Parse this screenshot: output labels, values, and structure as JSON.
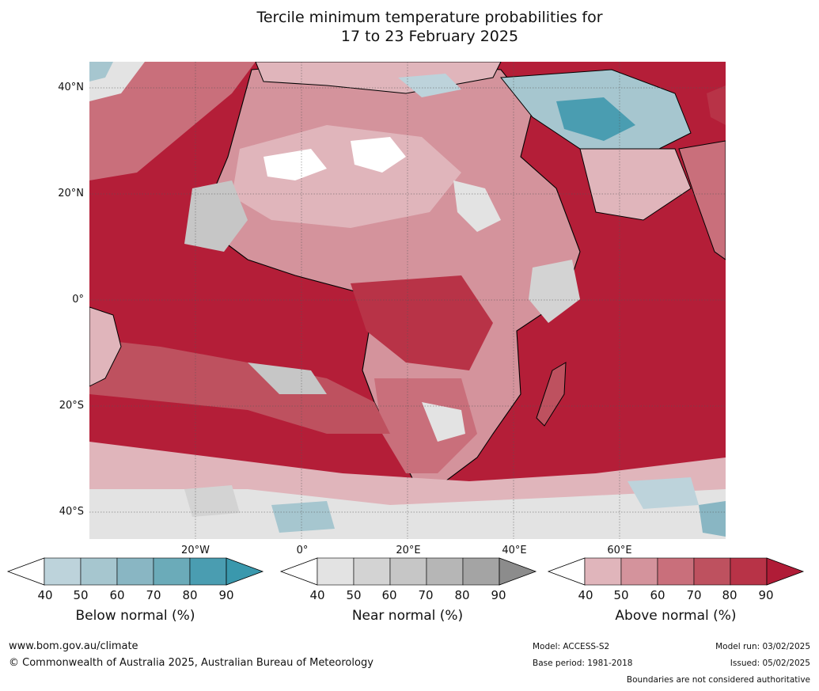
{
  "title": {
    "line1": "Tercile minimum temperature probabilities for",
    "line2": "17 to 23 February 2025"
  },
  "map": {
    "lat_labels": [
      "40°N",
      "20°N",
      "0°",
      "20°S",
      "40°S"
    ],
    "lon_labels": [
      "20°W",
      "0°",
      "20°E",
      "40°E",
      "60°E"
    ],
    "colors": {
      "above": [
        "#e0b5bb",
        "#d4939c",
        "#c96f7b",
        "#be515f",
        "#b83347",
        "#b01c37"
      ],
      "near": [
        "#e3e3e3",
        "#d3d3d3",
        "#c6c6c6",
        "#b6b6b6",
        "#a4a4a4",
        "#8c8c8c"
      ],
      "below": [
        "#bdd3db",
        "#a6c6cf",
        "#89b6c3",
        "#6babb9",
        "#4a9db1",
        "#3a98ad"
      ],
      "ocean_dominant": "#b41e38",
      "coastline": "#000000",
      "borders": "#808080"
    }
  },
  "colorbars": [
    {
      "name": "below",
      "label": "Below normal (%)",
      "ticks": [
        "40",
        "50",
        "60",
        "70",
        "80",
        "90"
      ],
      "colors": [
        "#bdd3db",
        "#a6c6cf",
        "#89b6c3",
        "#6babb9",
        "#4a9db1",
        "#3a98ad"
      ]
    },
    {
      "name": "near",
      "label": "Near normal (%)",
      "ticks": [
        "40",
        "50",
        "60",
        "70",
        "80",
        "90"
      ],
      "colors": [
        "#e3e3e3",
        "#d3d3d3",
        "#c6c6c6",
        "#b6b6b6",
        "#a4a4a4",
        "#8c8c8c"
      ]
    },
    {
      "name": "above",
      "label": "Above normal (%)",
      "ticks": [
        "40",
        "50",
        "60",
        "70",
        "80",
        "90"
      ],
      "colors": [
        "#e0b5bb",
        "#d4939c",
        "#c96f7b",
        "#be515f",
        "#b83347",
        "#b01c37"
      ]
    }
  ],
  "footer": {
    "website": "www.bom.gov.au/climate",
    "copyright": "© Commonwealth of Australia 2025, Australian Bureau of Meteorology",
    "model": "Model: ACCESS-S2",
    "base_period": "Base period: 1981-2018",
    "model_run": "Model run: 03/02/2025",
    "issued": "Issued: 05/02/2025",
    "disclaimer": "Boundaries are not considered authoritative"
  }
}
